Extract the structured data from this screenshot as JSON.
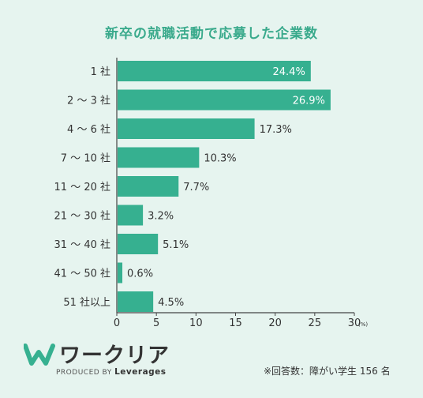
{
  "title": "新卒の就職活動で応募した企業数",
  "chart_data": {
    "type": "bar",
    "orientation": "horizontal",
    "categories": [
      "1 社",
      "2 〜 3 社",
      "4 〜 6 社",
      "7 〜 10 社",
      "11 〜 20 社",
      "21 〜 30 社",
      "31 〜 40 社",
      "41 〜 50 社",
      "51 社以上"
    ],
    "values": [
      24.4,
      26.9,
      17.3,
      10.3,
      7.7,
      3.2,
      5.1,
      0.6,
      4.5
    ],
    "value_labels": [
      "24.4%",
      "26.9%",
      "17.3%",
      "10.3%",
      "7.7%",
      "3.2%",
      "5.1%",
      "0.6%",
      "4.5%"
    ],
    "xlim": [
      0,
      30
    ],
    "xticks": [
      "0",
      "5",
      "10",
      "15",
      "20",
      "25",
      "30"
    ],
    "xunit": "(%)",
    "bar_color": "#36b090",
    "grid": false
  },
  "logo": {
    "text": "ワークリア",
    "produced_by": "PRODUCED BY",
    "brand": "Leverages"
  },
  "note": "※回答数：障がい学生 156 名"
}
